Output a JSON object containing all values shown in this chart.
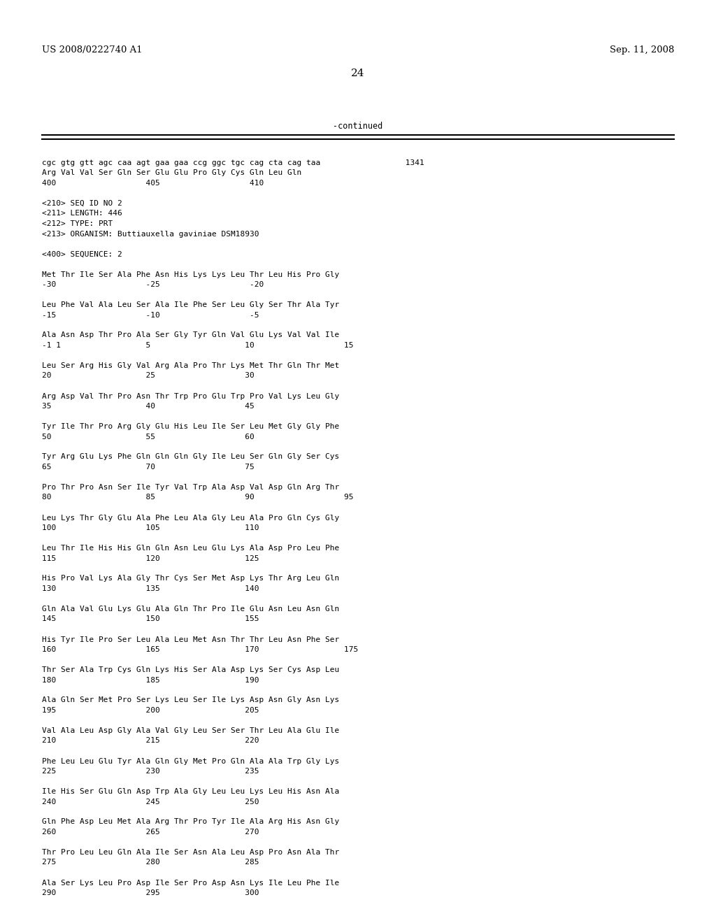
{
  "header_left": "US 2008/0222740 A1",
  "header_right": "Sep. 11, 2008",
  "page_number": "24",
  "continued_label": "-continued",
  "background_color": "#ffffff",
  "text_color": "#000000",
  "content_lines": [
    "cgc gtg gtt agc caa agt gaa gaa ccg ggc tgc cag cta cag taa                  1341",
    "Arg Val Val Ser Gln Ser Glu Glu Pro Gly Cys Gln Leu Gln",
    "400                   405                   410",
    "",
    "<210> SEQ ID NO 2",
    "<211> LENGTH: 446",
    "<212> TYPE: PRT",
    "<213> ORGANISM: Buttiauxella gaviniae DSM18930",
    "",
    "<400> SEQUENCE: 2",
    "",
    "Met Thr Ile Ser Ala Phe Asn His Lys Lys Leu Thr Leu His Pro Gly",
    "-30                   -25                   -20",
    "",
    "Leu Phe Val Ala Leu Ser Ala Ile Phe Ser Leu Gly Ser Thr Ala Tyr",
    "-15                   -10                   -5",
    "",
    "Ala Asn Asp Thr Pro Ala Ser Gly Tyr Gln Val Glu Lys Val Val Ile",
    "-1 1                  5                    10                   15",
    "",
    "Leu Ser Arg His Gly Val Arg Ala Pro Thr Lys Met Thr Gln Thr Met",
    "20                    25                   30",
    "",
    "Arg Asp Val Thr Pro Asn Thr Trp Pro Glu Trp Pro Val Lys Leu Gly",
    "35                    40                   45",
    "",
    "Tyr Ile Thr Pro Arg Gly Glu His Leu Ile Ser Leu Met Gly Gly Phe",
    "50                    55                   60",
    "",
    "Tyr Arg Glu Lys Phe Gln Gln Gln Gly Ile Leu Ser Gln Gly Ser Cys",
    "65                    70                   75",
    "",
    "Pro Thr Pro Asn Ser Ile Tyr Val Trp Ala Asp Val Asp Gln Arg Thr",
    "80                    85                   90                   95",
    "",
    "Leu Lys Thr Gly Glu Ala Phe Leu Ala Gly Leu Ala Pro Gln Cys Gly",
    "100                   105                  110",
    "",
    "Leu Thr Ile His His Gln Gln Asn Leu Glu Lys Ala Asp Pro Leu Phe",
    "115                   120                  125",
    "",
    "His Pro Val Lys Ala Gly Thr Cys Ser Met Asp Lys Thr Arg Leu Gln",
    "130                   135                  140",
    "",
    "Gln Ala Val Glu Lys Glu Ala Gln Thr Pro Ile Glu Asn Leu Asn Gln",
    "145                   150                  155",
    "",
    "His Tyr Ile Pro Ser Leu Ala Leu Met Asn Thr Thr Leu Asn Phe Ser",
    "160                   165                  170                  175",
    "",
    "Thr Ser Ala Trp Cys Gln Lys His Ser Ala Asp Lys Ser Cys Asp Leu",
    "180                   185                  190",
    "",
    "Ala Gln Ser Met Pro Ser Lys Leu Ser Ile Lys Asp Asn Gly Asn Lys",
    "195                   200                  205",
    "",
    "Val Ala Leu Asp Gly Ala Val Gly Leu Ser Ser Thr Leu Ala Glu Ile",
    "210                   215                  220",
    "",
    "Phe Leu Leu Glu Tyr Ala Gln Gly Met Pro Gln Ala Ala Trp Gly Lys",
    "225                   230                  235",
    "",
    "Ile His Ser Glu Gln Asp Trp Ala Gly Leu Leu Lys Leu His Asn Ala",
    "240                   245                  250",
    "",
    "Gln Phe Asp Leu Met Ala Arg Thr Pro Tyr Ile Ala Arg His Asn Gly",
    "260                   265                  270",
    "",
    "Thr Pro Leu Leu Gln Ala Ile Ser Asn Ala Leu Asp Pro Asn Ala Thr",
    "275                   280                  285",
    "",
    "Ala Ser Lys Leu Pro Asp Ile Ser Pro Asp Asn Lys Ile Leu Phe Ile",
    "290                   295                  300"
  ]
}
